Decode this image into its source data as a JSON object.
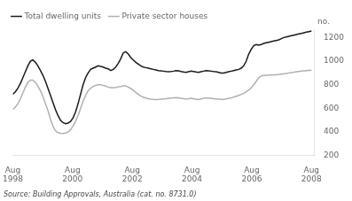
{
  "chart_data": {
    "type": "line",
    "x": [
      0,
      1.008403,
      2.016807,
      3.02521,
      4.033613,
      5.042017,
      6.05042,
      7.058824,
      8.067227,
      9.07563,
      10.084034,
      11.092437,
      12.10084,
      13.109244,
      14.117647,
      15.12605,
      16.134454,
      17.142857,
      18.151261,
      19.159664,
      20.168067,
      21.176471,
      22.184874,
      23.193277,
      24.201681,
      25.210084,
      26.218487,
      27.226891,
      28.235294,
      29.243697,
      30.252101,
      31.260504,
      32.268908,
      33.277311,
      34.285714,
      35.294118,
      36.302521,
      37.310924,
      38.319328,
      39.327731,
      40.336134,
      41.344538,
      42.352941,
      43.361345,
      44.369748,
      45.378151,
      46.386555,
      47.394958,
      48.403361,
      49.411765,
      50.420168,
      51.428571,
      52.436975,
      53.445378,
      54.453782,
      55.462185,
      56.470588,
      57.478992,
      58.487395,
      59.495798,
      60.504202,
      61.512605,
      62.521008,
      63.529412,
      64.537815,
      65.546218,
      66.554622,
      67.563025,
      68.571429,
      69.579832,
      70.588235,
      71.596639,
      72.605042,
      73.613445,
      74.621849,
      75.630252,
      76.638655,
      77.647059,
      78.655462,
      79.663866,
      80.672269,
      81.680672,
      82.689076,
      83.697479,
      84.705882,
      85.714286,
      86.722689,
      87.731092,
      88.739496,
      89.747899,
      90.756303,
      91.764706,
      92.773109,
      93.781513,
      94.789916,
      95.798319,
      96.806723,
      97.815126,
      98.823529,
      99.831933,
      100.840336,
      101.848739,
      102.857143,
      103.865546,
      104.87395,
      105.882353,
      106.890756,
      107.89916,
      108.907563,
      109.915966,
      110.92437,
      111.932773,
      112.941176,
      113.94958,
      114.957983,
      115.966387,
      116.97479,
      117.983193,
      118.991597,
      120
    ],
    "series": [
      {
        "name": "Total dwelling units",
        "color": "#1a1a1a",
        "values": [
          720,
          740,
          770,
          810,
          860,
          910,
          960,
          1000,
          1010,
          990,
          960,
          920,
          880,
          830,
          770,
          710,
          650,
          590,
          540,
          500,
          480,
          470,
          475,
          490,
          520,
          570,
          640,
          720,
          800,
          860,
          900,
          930,
          940,
          950,
          960,
          955,
          950,
          940,
          935,
          920,
          930,
          950,
          980,
          1020,
          1070,
          1080,
          1060,
          1030,
          1010,
          990,
          975,
          960,
          950,
          945,
          940,
          935,
          930,
          925,
          920,
          918,
          915,
          912,
          910,
          912,
          915,
          920,
          918,
          912,
          908,
          905,
          910,
          915,
          912,
          908,
          905,
          910,
          915,
          920,
          918,
          915,
          912,
          910,
          905,
          900,
          900,
          905,
          910,
          915,
          920,
          925,
          930,
          940,
          960,
          1000,
          1060,
          1100,
          1130,
          1140,
          1135,
          1140,
          1150,
          1155,
          1160,
          1165,
          1170,
          1175,
          1180,
          1190,
          1200,
          1205,
          1210,
          1215,
          1220,
          1225,
          1230,
          1235,
          1240,
          1245,
          1250,
          1255
        ]
      },
      {
        "name": "Private sector houses",
        "color": "#b0b0b0",
        "values": [
          590,
          610,
          640,
          680,
          730,
          780,
          820,
          840,
          840,
          820,
          790,
          750,
          700,
          640,
          580,
          510,
          450,
          410,
          395,
          390,
          388,
          392,
          400,
          420,
          450,
          490,
          540,
          600,
          660,
          710,
          750,
          770,
          785,
          795,
          800,
          800,
          795,
          788,
          780,
          775,
          775,
          778,
          782,
          785,
          790,
          790,
          780,
          768,
          752,
          735,
          718,
          705,
          695,
          688,
          682,
          678,
          676,
          675,
          676,
          678,
          680,
          682,
          685,
          688,
          690,
          692,
          690,
          686,
          682,
          680,
          682,
          685,
          682,
          678,
          675,
          680,
          685,
          690,
          688,
          685,
          682,
          680,
          678,
          676,
          676,
          680,
          685,
          690,
          696,
          703,
          710,
          718,
          728,
          740,
          755,
          775,
          800,
          830,
          860,
          875,
          878,
          880,
          882,
          883,
          884,
          885,
          887,
          890,
          893,
          896,
          900,
          903,
          906,
          910,
          913,
          916,
          918,
          920,
          922,
          924
        ]
      }
    ],
    "xlim": [
      0,
      121
    ],
    "xticks": [
      {
        "value": 0,
        "label": "Aug\n1998"
      },
      {
        "value": 24,
        "label": "Aug\n2000"
      },
      {
        "value": 48,
        "label": "Aug\n2002"
      },
      {
        "value": 72,
        "label": "Aug\n2004"
      },
      {
        "value": 96,
        "label": "Aug\n2006"
      },
      {
        "value": 120,
        "label": "Aug\n2008"
      }
    ],
    "ylim": [
      200,
      1270
    ],
    "yticks": [
      200,
      400,
      600,
      800,
      1000,
      1200
    ],
    "ylabel": "no.",
    "source": "Source: Building Approvals, Australia (cat. no. 8731.0)",
    "grid": false,
    "legend": "upper left"
  }
}
